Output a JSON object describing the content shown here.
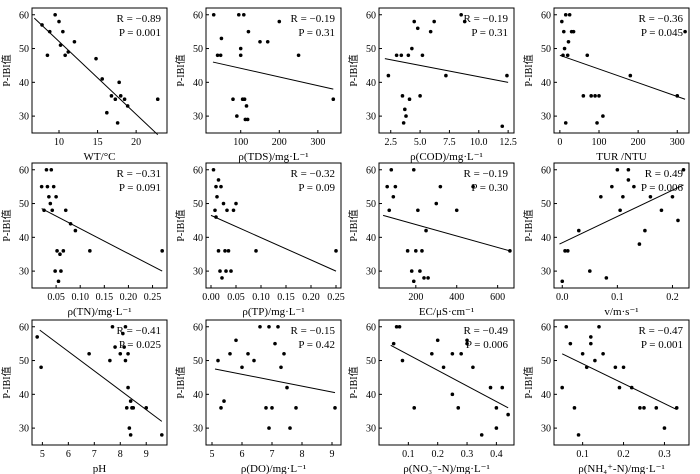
{
  "figure": {
    "y_axis_label": "P-IBI值"
  },
  "chart_data": [
    {
      "type": "scatter",
      "xlabel": "WT/°C",
      "ylabel": "P-IBI值",
      "r_text": "R = −0.89",
      "p_text": "P = 0.001",
      "xlim": [
        6.5,
        24
      ],
      "ylim": [
        25,
        62
      ],
      "xticks": [
        10,
        15,
        20
      ],
      "xtick_labels": [
        "10",
        "15",
        "20"
      ],
      "yticks": [
        30,
        40,
        50,
        60
      ],
      "ytick_labels": [
        "30",
        "40",
        "50",
        "60"
      ],
      "x": [
        7.8,
        8.5,
        8.8,
        9.5,
        10.0,
        10.2,
        10.5,
        10.8,
        11.2,
        12.0,
        14.8,
        15.6,
        16.2,
        16.8,
        17.3,
        17.6,
        18.0,
        18.5,
        18.9,
        17.8,
        22.8
      ],
      "y": [
        57,
        48,
        55,
        60,
        58,
        51,
        55,
        48,
        49,
        52,
        47,
        41,
        31,
        36,
        35,
        28,
        36,
        35,
        33,
        40,
        35
      ],
      "trend": [
        [
          6.8,
          59.0
        ],
        [
          22.8,
          24.5
        ]
      ]
    },
    {
      "type": "scatter",
      "xlabel": "ρ(TDS)/mg·L⁻¹",
      "ylabel": "P-IBI值",
      "r_text": "R = −0.19",
      "p_text": "P = 0.31",
      "xlim": [
        10,
        360
      ],
      "ylim": [
        25,
        62
      ],
      "xticks": [
        100,
        200,
        300
      ],
      "xtick_labels": [
        "100",
        "200",
        "300"
      ],
      "yticks": [
        30,
        40,
        50,
        60
      ],
      "ytick_labels": [
        "30",
        "40",
        "50",
        "60"
      ],
      "x": [
        30,
        40,
        48,
        50,
        80,
        90,
        95,
        100,
        105,
        108,
        110,
        112,
        115,
        118,
        120,
        150,
        170,
        200,
        250,
        340,
        100
      ],
      "y": [
        60,
        48,
        48,
        53,
        35,
        30,
        60,
        48,
        35,
        60,
        35,
        29,
        33,
        29,
        55,
        52,
        52,
        58,
        48,
        35,
        50
      ],
      "trend": [
        [
          28,
          46.0
        ],
        [
          340,
          38.0
        ]
      ]
    },
    {
      "type": "scatter",
      "xlabel": "ρ(COD)/mg·L⁻¹",
      "ylabel": "P-IBI值",
      "r_text": "R = −0.19",
      "p_text": "P = 0.31",
      "xlim": [
        1.5,
        13
      ],
      "ylim": [
        25,
        62
      ],
      "xticks": [
        2.5,
        5.0,
        7.5,
        10.0,
        12.5
      ],
      "xtick_labels": [
        "2.5",
        "5.0",
        "7.5",
        "10.0",
        "12.5"
      ],
      "x": [
        2.3,
        3.0,
        3.4,
        3.5,
        3.6,
        3.8,
        4.0,
        4.1,
        4.3,
        4.5,
        4.8,
        5.0,
        5.2,
        5.9,
        6.2,
        7.2,
        8.5,
        8.8,
        12.0,
        12.4,
        3.7
      ],
      "y": [
        42,
        48,
        48,
        36,
        28,
        30,
        48,
        35,
        50,
        58,
        56,
        36,
        48,
        55,
        58,
        42,
        60,
        58,
        27,
        42,
        32
      ],
      "yticks": [
        30,
        40,
        50,
        60
      ],
      "ytick_labels": [
        "30",
        "40",
        "50",
        "60"
      ],
      "trend": [
        [
          2.0,
          47.0
        ],
        [
          12.5,
          40.0
        ]
      ]
    },
    {
      "type": "scatter",
      "xlabel": "TUR /NTU",
      "ylabel": "P-IBI值",
      "r_text": "R = −0.36",
      "p_text": "P = 0.045",
      "xlim": [
        -15,
        330
      ],
      "ylim": [
        25,
        62
      ],
      "xticks": [
        0,
        100,
        200,
        300
      ],
      "xtick_labels": [
        "0",
        "100",
        "200",
        "300"
      ],
      "yticks": [
        30,
        40,
        50,
        60
      ],
      "ytick_labels": [
        "30",
        "40",
        "50",
        "60"
      ],
      "x": [
        5,
        8,
        10,
        12,
        15,
        20,
        22,
        25,
        30,
        35,
        60,
        70,
        80,
        90,
        95,
        100,
        110,
        180,
        300,
        320,
        15
      ],
      "y": [
        58,
        48,
        55,
        50,
        60,
        48,
        52,
        60,
        55,
        55,
        36,
        48,
        36,
        36,
        28,
        36,
        30,
        42,
        36,
        55,
        28
      ],
      "trend": [
        [
          0,
          48.0
        ],
        [
          320,
          35.0
        ]
      ]
    },
    {
      "type": "scatter",
      "xlabel": "ρ(TN)/mg·L⁻¹",
      "ylabel": "P-IBI值",
      "r_text": "R = −0.31",
      "p_text": "P = 0.091",
      "xlim": [
        0.0,
        0.28
      ],
      "ylim": [
        25,
        62
      ],
      "xticks": [
        0.05,
        0.1,
        0.15,
        0.2,
        0.25
      ],
      "xtick_labels": [
        "0.05",
        "0.10",
        "0.15",
        "0.20",
        "0.25"
      ],
      "yticks": [
        30,
        40,
        50,
        60
      ],
      "ytick_labels": [
        "30",
        "40",
        "50",
        "60"
      ],
      "x": [
        0.02,
        0.025,
        0.03,
        0.032,
        0.035,
        0.04,
        0.042,
        0.045,
        0.048,
        0.05,
        0.052,
        0.055,
        0.058,
        0.06,
        0.065,
        0.07,
        0.08,
        0.09,
        0.12,
        0.27,
        0.038
      ],
      "y": [
        55,
        48,
        60,
        55,
        52,
        60,
        48,
        55,
        30,
        52,
        36,
        27,
        35,
        30,
        36,
        48,
        44,
        42,
        36,
        36,
        50
      ],
      "trend": [
        [
          0.02,
          48.5
        ],
        [
          0.27,
          30.0
        ]
      ]
    },
    {
      "type": "scatter",
      "xlabel": "ρ(TP)/mg·L⁻¹",
      "ylabel": "P-IBI值",
      "r_text": "R = −0.32",
      "p_text": "P = 0.09",
      "xlim": [
        -0.01,
        0.26
      ],
      "ylim": [
        25,
        62
      ],
      "xticks": [
        0.0,
        0.05,
        0.1,
        0.15,
        0.2,
        0.25
      ],
      "xtick_labels": [
        "0.00",
        "0.05",
        "0.10",
        "0.15",
        "0.20",
        "0.25"
      ],
      "yticks": [
        30,
        40,
        50,
        60
      ],
      "ytick_labels": [
        "30",
        "40",
        "50",
        "60"
      ],
      "x": [
        0.005,
        0.008,
        0.01,
        0.012,
        0.015,
        0.018,
        0.02,
        0.022,
        0.025,
        0.028,
        0.03,
        0.032,
        0.035,
        0.04,
        0.045,
        0.05,
        0.09,
        0.25,
        0.015,
        0.01
      ],
      "y": [
        60,
        48,
        55,
        52,
        36,
        30,
        55,
        28,
        50,
        36,
        30,
        48,
        36,
        30,
        48,
        50,
        36,
        36,
        57,
        46
      ],
      "trend": [
        [
          0.0,
          46.5
        ],
        [
          0.25,
          30.0
        ]
      ]
    },
    {
      "type": "scatter",
      "xlabel": "EC/μS·cm⁻¹",
      "ylabel": "P-IBI值",
      "r_text": "R = −0.19",
      "p_text": "P = 0.30",
      "xlim": [
        20,
        680
      ],
      "ylim": [
        25,
        62
      ],
      "xticks": [
        200,
        400,
        600
      ],
      "xtick_labels": [
        "200",
        "400",
        "600"
      ],
      "yticks": [
        30,
        40,
        50,
        60
      ],
      "ytick_labels": [
        "30",
        "40",
        "50",
        "60"
      ],
      "x": [
        60,
        70,
        80,
        90,
        100,
        160,
        180,
        190,
        200,
        210,
        220,
        230,
        240,
        250,
        260,
        300,
        320,
        400,
        480,
        660,
        190
      ],
      "y": [
        55,
        48,
        60,
        52,
        55,
        36,
        30,
        60,
        36,
        48,
        30,
        36,
        28,
        42,
        28,
        50,
        55,
        48,
        55,
        36,
        27
      ],
      "trend": [
        [
          40,
          46.5
        ],
        [
          660,
          36.0
        ]
      ]
    },
    {
      "type": "scatter",
      "xlabel": "v/m·s⁻¹",
      "ylabel": "P-IBI值",
      "r_text": "R = 0.49",
      "p_text": "P = 0.006",
      "xlim": [
        -0.015,
        0.23
      ],
      "ylim": [
        25,
        62
      ],
      "xticks": [
        0.0,
        0.1,
        0.2
      ],
      "xtick_labels": [
        "0.0",
        "0.1",
        "0.2"
      ],
      "yticks": [
        30,
        40,
        50,
        60
      ],
      "ytick_labels": [
        "30",
        "40",
        "50",
        "60"
      ],
      "x": [
        0.0,
        0.005,
        0.01,
        0.03,
        0.05,
        0.07,
        0.08,
        0.09,
        0.1,
        0.105,
        0.11,
        0.12,
        0.13,
        0.14,
        0.15,
        0.16,
        0.18,
        0.2,
        0.22,
        0.21,
        0.12
      ],
      "y": [
        27,
        36,
        36,
        42,
        30,
        52,
        28,
        55,
        60,
        48,
        52,
        60,
        55,
        38,
        42,
        52,
        48,
        52,
        60,
        45,
        57
      ],
      "trend": [
        [
          -0.005,
          38.0
        ],
        [
          0.22,
          55.5
        ]
      ]
    },
    {
      "type": "scatter",
      "xlabel": "pH",
      "ylabel": "P-IBI值",
      "r_text": "R = −0.41",
      "p_text": "P = 0.025",
      "xlim": [
        4.6,
        9.8
      ],
      "ylim": [
        25,
        62
      ],
      "xticks": [
        5,
        6,
        7,
        8,
        9
      ],
      "xtick_labels": [
        "5",
        "6",
        "7",
        "8",
        "9"
      ],
      "yticks": [
        30,
        40,
        50,
        60
      ],
      "ytick_labels": [
        "30",
        "40",
        "50",
        "60"
      ],
      "x": [
        4.8,
        4.95,
        6.8,
        7.6,
        7.7,
        7.8,
        8.0,
        8.1,
        8.15,
        8.2,
        8.25,
        8.3,
        8.35,
        8.4,
        8.45,
        8.5,
        9.0,
        9.6,
        8.2,
        8.3,
        8.4
      ],
      "y": [
        57,
        48,
        52,
        50,
        60,
        54,
        52,
        58,
        54,
        60,
        36,
        42,
        30,
        28,
        36,
        36,
        36,
        28,
        50,
        52,
        38
      ],
      "trend": [
        [
          4.9,
          59.0
        ],
        [
          9.6,
          32.0
        ]
      ]
    },
    {
      "type": "scatter",
      "xlabel": "ρ(DO)/mg·L⁻¹",
      "ylabel": "P-IBI值",
      "r_text": "R = −0.15",
      "p_text": "P = 0.42",
      "xlim": [
        4.8,
        9.3
      ],
      "ylim": [
        25,
        62
      ],
      "xticks": [
        5,
        6,
        7,
        8,
        9
      ],
      "xtick_labels": [
        "5",
        "6",
        "7",
        "8",
        "9"
      ],
      "yticks": [
        30,
        40,
        50,
        60
      ],
      "ytick_labels": [
        "30",
        "40",
        "50",
        "60"
      ],
      "x": [
        5.2,
        5.3,
        5.6,
        5.8,
        6.0,
        6.2,
        6.4,
        6.6,
        6.8,
        6.9,
        7.0,
        7.2,
        7.3,
        7.4,
        7.5,
        7.6,
        7.8,
        9.1,
        5.4,
        6.9,
        7.1
      ],
      "y": [
        50,
        36,
        52,
        56,
        48,
        52,
        50,
        60,
        36,
        60,
        36,
        60,
        48,
        52,
        42,
        30,
        36,
        36,
        38,
        30,
        55
      ],
      "trend": [
        [
          5.1,
          47.5
        ],
        [
          9.1,
          40.5
        ]
      ]
    },
    {
      "type": "scatter",
      "xlabel": "ρ(NO₃⁻-N)/mg·L⁻¹",
      "ylabel": "P-IBI值",
      "r_text": "R = −0.49",
      "p_text": "P = 0.006",
      "xlim": [
        0.0,
        0.46
      ],
      "ylim": [
        25,
        62
      ],
      "xticks": [
        0.1,
        0.2,
        0.3,
        0.4
      ],
      "xtick_labels": [
        "0.1",
        "0.2",
        "0.3",
        "0.4"
      ],
      "yticks": [
        30,
        40,
        50,
        60
      ],
      "ytick_labels": [
        "30",
        "40",
        "50",
        "60"
      ],
      "x": [
        0.05,
        0.06,
        0.07,
        0.08,
        0.12,
        0.18,
        0.2,
        0.22,
        0.25,
        0.27,
        0.28,
        0.3,
        0.32,
        0.35,
        0.38,
        0.4,
        0.42,
        0.44,
        0.3,
        0.25,
        0.4
      ],
      "y": [
        55,
        60,
        60,
        50,
        36,
        52,
        56,
        48,
        52,
        36,
        52,
        56,
        48,
        28,
        42,
        36,
        42,
        34,
        55,
        40,
        30
      ],
      "trend": [
        [
          0.04,
          54.5
        ],
        [
          0.44,
          36.0
        ]
      ]
    },
    {
      "type": "scatter",
      "xlabel": "ρ(NH₄⁺-N)/mg·L⁻¹",
      "ylabel": "P-IBI值",
      "r_text": "R = −0.47",
      "p_text": "P = 0.001",
      "xlim": [
        0.03,
        0.36
      ],
      "ylim": [
        25,
        62
      ],
      "xticks": [
        0.1,
        0.2,
        0.3
      ],
      "xtick_labels": [
        "0.1",
        "0.2",
        "0.3"
      ],
      "yticks": [
        30,
        40,
        50,
        60
      ],
      "ytick_labels": [
        "30",
        "40",
        "50",
        "60"
      ],
      "x": [
        0.05,
        0.06,
        0.07,
        0.08,
        0.09,
        0.1,
        0.11,
        0.12,
        0.13,
        0.14,
        0.15,
        0.18,
        0.2,
        0.22,
        0.24,
        0.25,
        0.28,
        0.3,
        0.33,
        0.12,
        0.19
      ],
      "y": [
        42,
        60,
        55,
        36,
        28,
        52,
        48,
        55,
        50,
        60,
        52,
        48,
        48,
        42,
        36,
        36,
        36,
        30,
        36,
        57,
        42
      ],
      "trend": [
        [
          0.05,
          52.0
        ],
        [
          0.33,
          35.5
        ]
      ]
    }
  ]
}
